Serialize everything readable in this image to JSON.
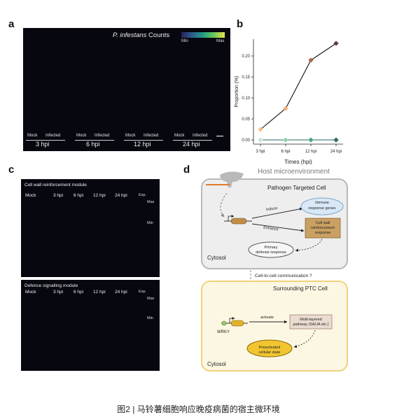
{
  "panels": {
    "a": {
      "label": "a",
      "title_species": "P. infestans",
      "title_rest": " Counts",
      "colorbar": {
        "min": "Min",
        "max": "Max",
        "colors": [
          "#2d1e5a",
          "#2b5d8f",
          "#239c86",
          "#69c95b",
          "#e9e247"
        ]
      },
      "groups": [
        {
          "mock": "Mock",
          "infected": "Infected",
          "time": "3 hpi"
        },
        {
          "mock": "Mock",
          "infected": "Infected",
          "time": "6 hpi"
        },
        {
          "mock": "Mock",
          "infected": "Infected",
          "time": "12 hpi"
        },
        {
          "mock": "Mock",
          "infected": "Infected",
          "time": "24 hpi"
        }
      ]
    },
    "b": {
      "label": "b"
    },
    "c": {
      "label": "c",
      "module1": {
        "title": "Cell wall reinforcement module",
        "exp": "Exp.",
        "max": "Max",
        "min": "Min"
      },
      "module2": {
        "title": "Defence signalling module",
        "exp": "Exp.",
        "max": "Max",
        "min": "Min"
      },
      "timeline": [
        "Mock",
        "3 hpi",
        "6 hpi",
        "12 hpi",
        "24 hpi"
      ]
    },
    "d": {
      "label": "d",
      "host_title": "Host microenvironment",
      "ptc_title": "Pathogen Targeted Cell",
      "induce": "Induce",
      "enhance": "Enhance",
      "immune": [
        "Immune",
        "response genes"
      ],
      "cellwall": [
        "Cell wall",
        "reinforcement",
        "response"
      ],
      "primary": [
        "Primary",
        "defense response"
      ],
      "cytosol1": "Cytosol",
      "comm": "Cell-to-cell communication ?",
      "surround_title": "Surrounding PTC Cell",
      "wrky": "WRKY",
      "activate": "activate",
      "multi": [
        "Multi-layered",
        "pathway (SA/JA etc.)"
      ],
      "preact": [
        "Preactivated",
        "cellular state"
      ],
      "cytosol2": "Cytosol"
    }
  },
  "chart_data": {
    "type": "line",
    "categories": [
      "3 hpi",
      "6 hpi",
      "12 hpi",
      "24 hpi"
    ],
    "series": [
      {
        "values": [
          0.025,
          0.075,
          0.19,
          0.23
        ],
        "point_colors": [
          "#f4c28a",
          "#f0b27a",
          "#a8694b",
          "#5b3f37"
        ],
        "line_color": "#111111"
      },
      {
        "values": [
          0.0,
          0.0,
          0.0,
          0.0
        ],
        "point_colors": [
          "#c9e3d2",
          "#8fcfa8",
          "#4fa384",
          "#2e6b61"
        ],
        "line_color": "#1f6a5c"
      }
    ],
    "yticks": [
      0.0,
      0.05,
      0.1,
      0.15,
      0.2
    ],
    "ytick_labels": [
      "0.00",
      "0.05",
      "0.10",
      "0.15",
      "0.20"
    ],
    "ylim": [
      -0.01,
      0.24
    ],
    "xlabel": "Times (hpi)",
    "ylabel": "Proportion (%)",
    "grid": false
  },
  "caption": "图2 | 马铃薯细胞响应晚疫病菌的宿主微环境"
}
